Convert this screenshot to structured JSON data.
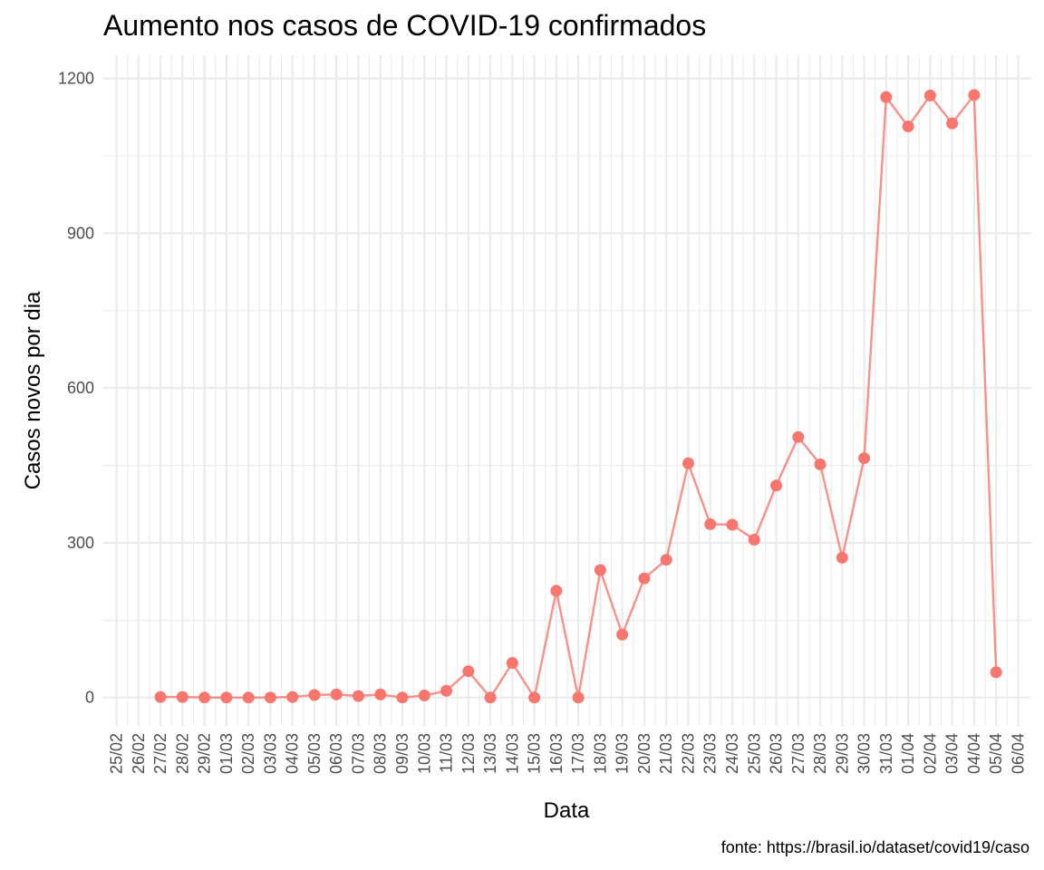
{
  "chart_data": {
    "type": "line",
    "title": "Aumento nos casos de COVID-19 confirmados",
    "xlabel": "Data",
    "ylabel": "Casos novos por dia",
    "caption": "fonte: https://brasil.io/dataset/covid19/caso",
    "ylim": [
      -55,
      1245
    ],
    "yticks": [
      0,
      300,
      600,
      900,
      1200
    ],
    "grid": true,
    "legend": "none",
    "color": "#F8766D",
    "x_ticks": [
      "25/02",
      "26/02",
      "27/02",
      "28/02",
      "29/02",
      "01/03",
      "02/03",
      "03/03",
      "04/03",
      "05/03",
      "06/03",
      "07/03",
      "08/03",
      "09/03",
      "10/03",
      "11/03",
      "12/03",
      "13/03",
      "14/03",
      "15/03",
      "16/03",
      "17/03",
      "18/03",
      "19/03",
      "20/03",
      "21/03",
      "22/03",
      "23/03",
      "24/03",
      "25/03",
      "26/03",
      "27/03",
      "28/03",
      "29/03",
      "30/03",
      "31/03",
      "01/04",
      "02/04",
      "03/04",
      "04/04",
      "05/04",
      "06/04"
    ],
    "x": [
      "27/02",
      "28/02",
      "29/02",
      "01/03",
      "02/03",
      "03/03",
      "04/03",
      "05/03",
      "06/03",
      "07/03",
      "08/03",
      "09/03",
      "10/03",
      "11/03",
      "12/03",
      "13/03",
      "14/03",
      "15/03",
      "16/03",
      "17/03",
      "18/03",
      "19/03",
      "20/03",
      "21/03",
      "22/03",
      "23/03",
      "24/03",
      "25/03",
      "26/03",
      "27/03",
      "28/03",
      "29/03",
      "30/03",
      "31/03",
      "01/04",
      "02/04",
      "03/04",
      "04/04",
      "05/04"
    ],
    "values": [
      1,
      1,
      0,
      0,
      0,
      0,
      1,
      5,
      6,
      3,
      6,
      0,
      4,
      13,
      51,
      0,
      67,
      0,
      207,
      0,
      247,
      122,
      231,
      267,
      454,
      336,
      335,
      306,
      411,
      505,
      452,
      271,
      464,
      1164,
      1107,
      1167,
      1113,
      1168,
      49
    ]
  }
}
